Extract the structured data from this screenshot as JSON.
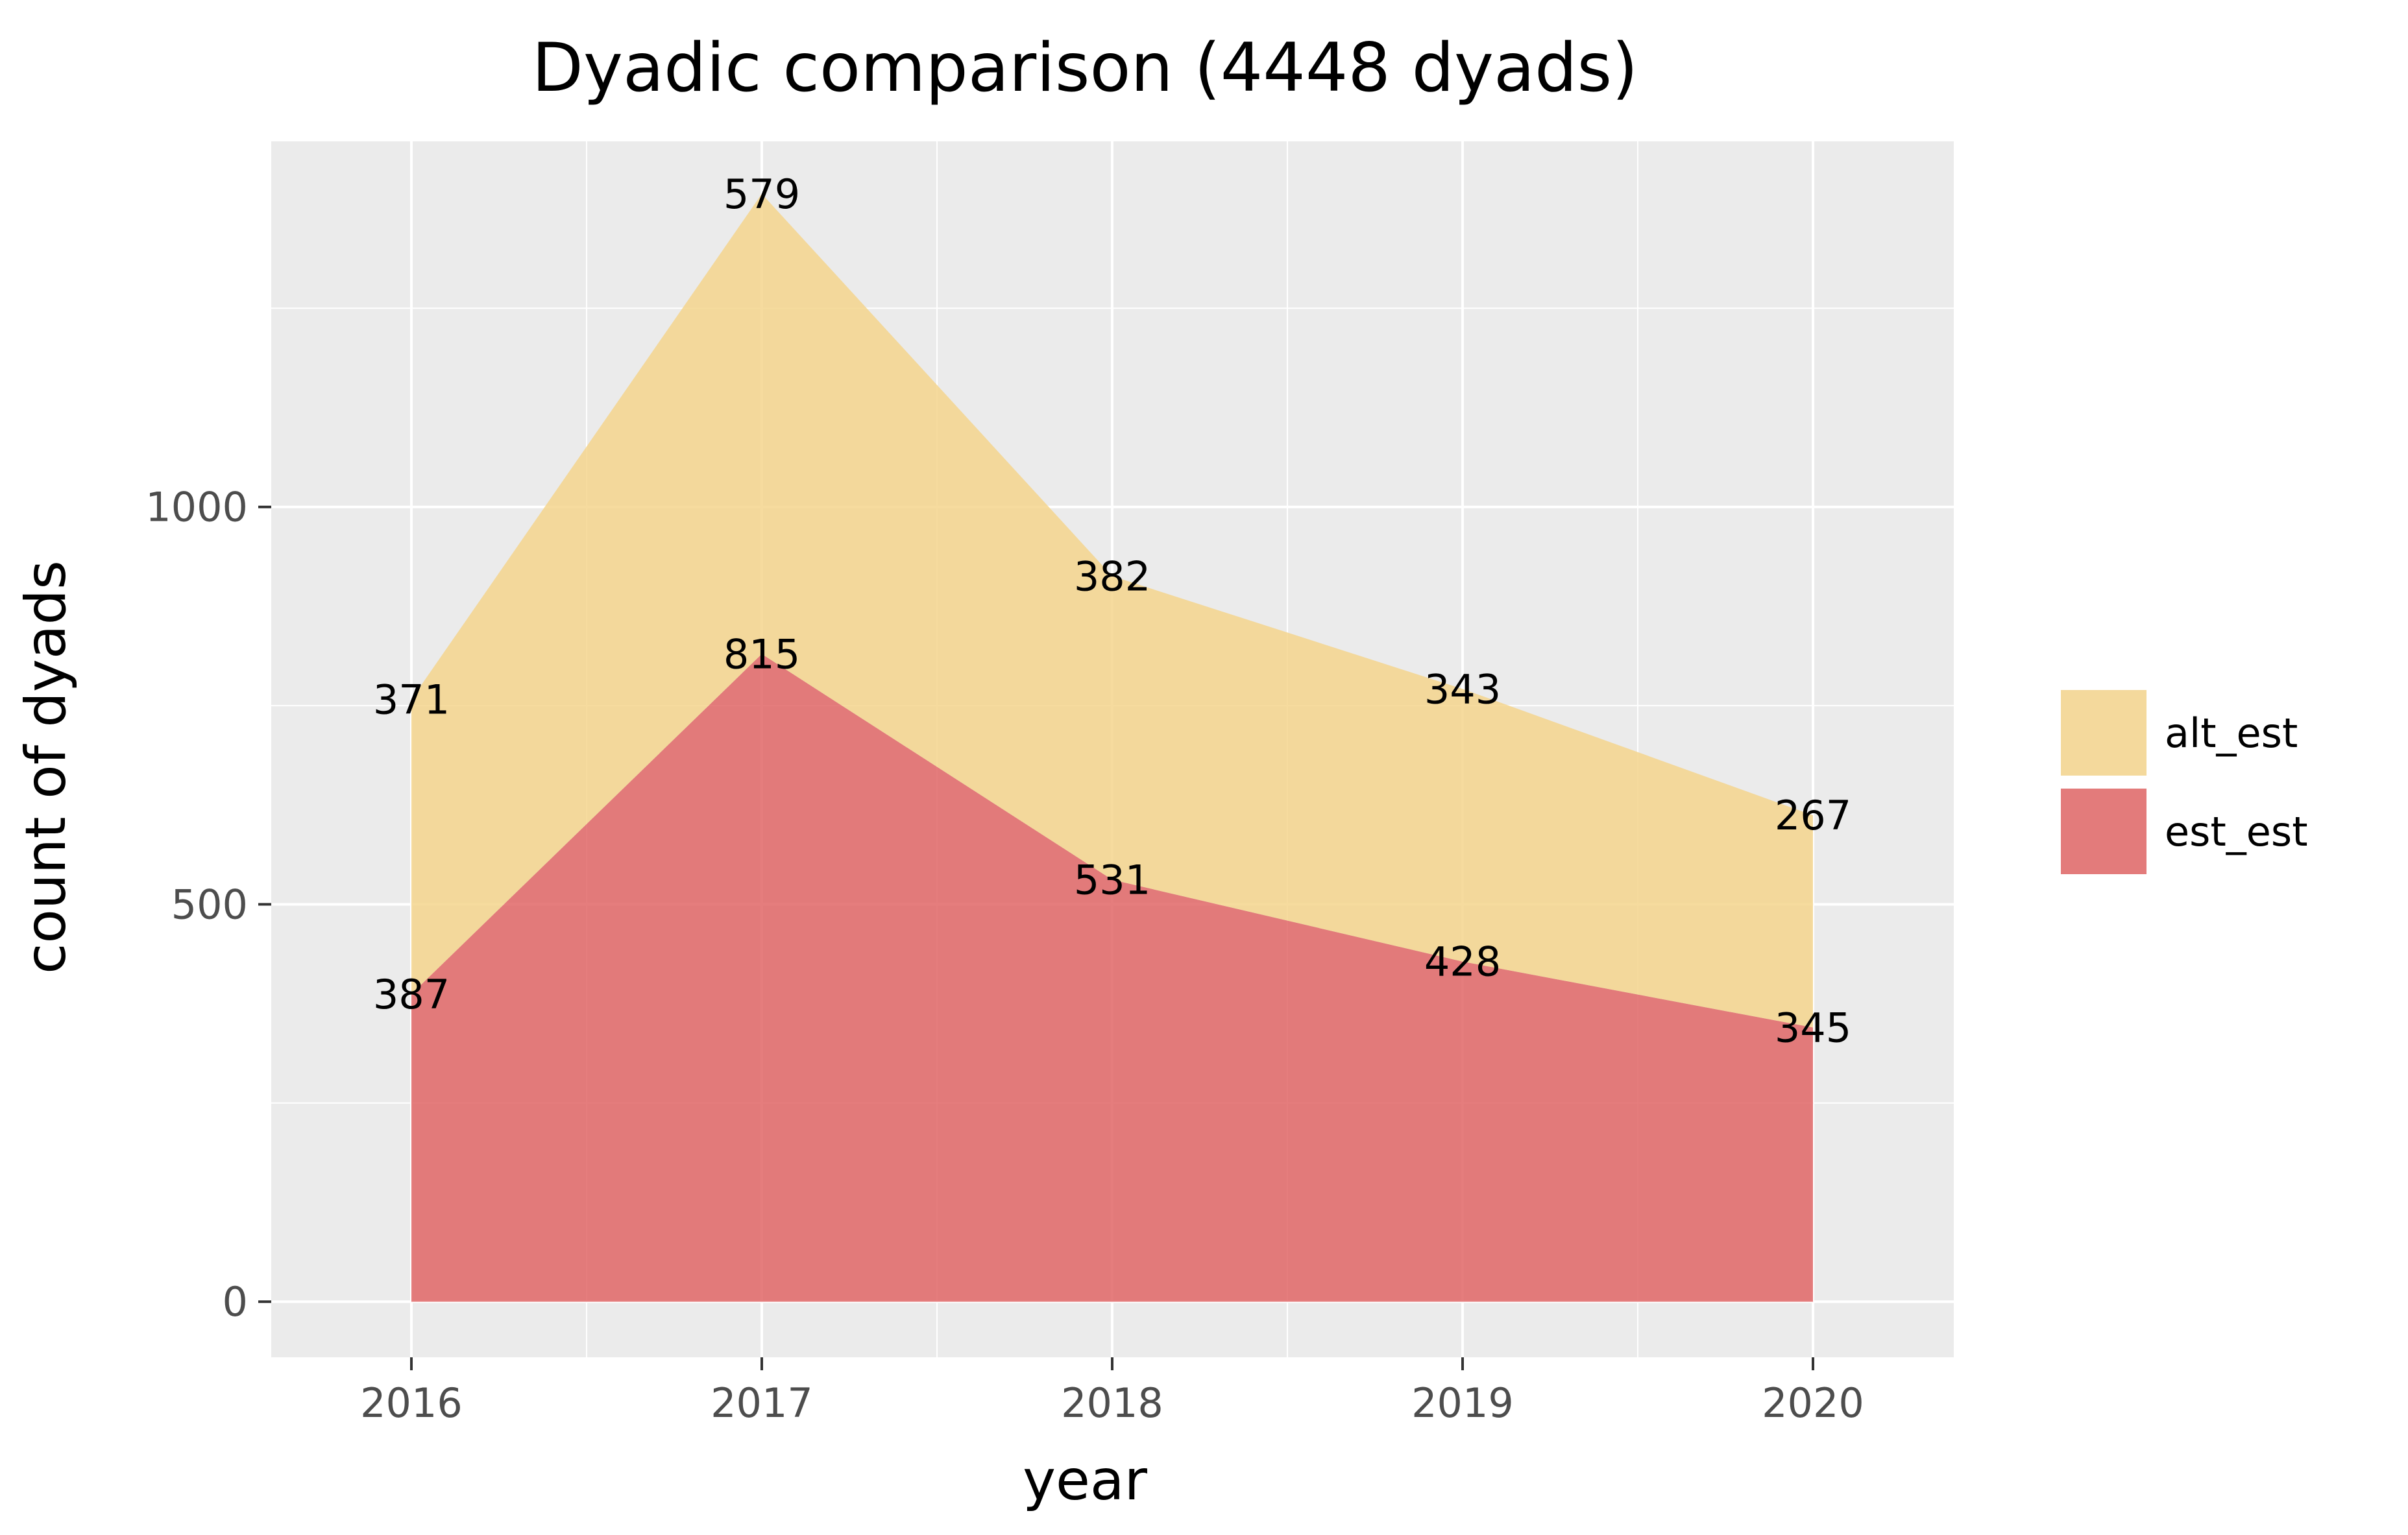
{
  "chart_data": {
    "type": "area",
    "stacked": true,
    "title": "Dyadic comparison (4448 dyads)",
    "xlabel": "year",
    "ylabel": "count of dyads",
    "x": [
      "2016",
      "2017",
      "2018",
      "2019",
      "2020"
    ],
    "series": [
      {
        "name": "est_est",
        "values": [
          387,
          815,
          531,
          428,
          345
        ],
        "color": "#E06666"
      },
      {
        "name": "alt_est",
        "values": [
          371,
          579,
          382,
          343,
          267
        ],
        "color": "#F4D58D"
      }
    ],
    "y_ticks": [
      "0",
      "500",
      "1000"
    ],
    "ylim": [
      -70,
      1460
    ],
    "grid": true,
    "legend": {
      "position": "right",
      "entries": [
        "alt_est",
        "est_est"
      ]
    },
    "panel_background": "#EBEBEB"
  }
}
